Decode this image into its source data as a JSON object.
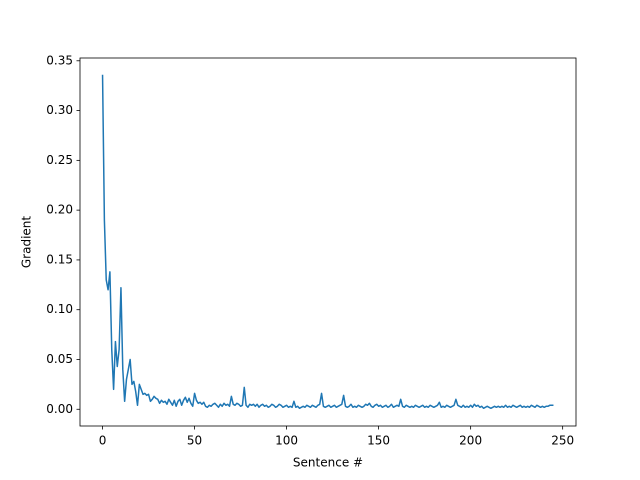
{
  "chart_data": {
    "type": "line",
    "xlabel": "Sentence #",
    "ylabel": "Gradient",
    "x": [
      0,
      1,
      2,
      3,
      4,
      5,
      6,
      7,
      8,
      9,
      10,
      11,
      12,
      13,
      14,
      15,
      16,
      17,
      18,
      19,
      20,
      21,
      22,
      23,
      24,
      25,
      26,
      27,
      28,
      29,
      30,
      31,
      32,
      33,
      34,
      35,
      36,
      37,
      38,
      39,
      40,
      41,
      42,
      43,
      44,
      45,
      46,
      47,
      48,
      49,
      50,
      51,
      52,
      53,
      54,
      55,
      56,
      57,
      58,
      59,
      60,
      61,
      62,
      63,
      64,
      65,
      66,
      67,
      68,
      69,
      70,
      71,
      72,
      73,
      74,
      75,
      76,
      77,
      78,
      79,
      80,
      81,
      82,
      83,
      84,
      85,
      86,
      87,
      88,
      89,
      90,
      91,
      92,
      93,
      94,
      95,
      96,
      97,
      98,
      99,
      100,
      101,
      102,
      103,
      104,
      105,
      106,
      107,
      108,
      109,
      110,
      111,
      112,
      113,
      114,
      115,
      116,
      117,
      118,
      119,
      120,
      121,
      122,
      123,
      124,
      125,
      126,
      127,
      128,
      129,
      130,
      131,
      132,
      133,
      134,
      135,
      136,
      137,
      138,
      139,
      140,
      141,
      142,
      143,
      144,
      145,
      146,
      147,
      148,
      149,
      150,
      151,
      152,
      153,
      154,
      155,
      156,
      157,
      158,
      159,
      160,
      161,
      162,
      163,
      164,
      165,
      166,
      167,
      168,
      169,
      170,
      171,
      172,
      173,
      174,
      175,
      176,
      177,
      178,
      179,
      180,
      181,
      182,
      183,
      184,
      185,
      186,
      187,
      188,
      189,
      190,
      191,
      192,
      193,
      194,
      195,
      196,
      197,
      198,
      199,
      200,
      201,
      202,
      203,
      204,
      205,
      206,
      207,
      208,
      209,
      210,
      211,
      212,
      213,
      214,
      215,
      216,
      217,
      218,
      219,
      220,
      221,
      222,
      223,
      224,
      225,
      226,
      227,
      228,
      229,
      230,
      231,
      232,
      233,
      234,
      235,
      236,
      237,
      238,
      239,
      240,
      241,
      242,
      243,
      244,
      245
    ],
    "series": [
      {
        "color": "#1f77b4",
        "values": [
          0.336,
          0.19,
          0.13,
          0.12,
          0.138,
          0.06,
          0.02,
          0.068,
          0.043,
          0.06,
          0.122,
          0.04,
          0.008,
          0.03,
          0.04,
          0.05,
          0.025,
          0.028,
          0.018,
          0.004,
          0.025,
          0.02,
          0.015,
          0.016,
          0.014,
          0.015,
          0.008,
          0.01,
          0.013,
          0.011,
          0.01,
          0.006,
          0.009,
          0.007,
          0.008,
          0.005,
          0.01,
          0.007,
          0.004,
          0.009,
          0.003,
          0.008,
          0.01,
          0.004,
          0.009,
          0.012,
          0.007,
          0.011,
          0.006,
          0.003,
          0.016,
          0.009,
          0.006,
          0.007,
          0.005,
          0.007,
          0.003,
          0.002,
          0.004,
          0.003,
          0.005,
          0.006,
          0.004,
          0.002,
          0.005,
          0.003,
          0.006,
          0.004,
          0.005,
          0.003,
          0.013,
          0.005,
          0.004,
          0.006,
          0.005,
          0.003,
          0.004,
          0.022,
          0.004,
          0.002,
          0.005,
          0.004,
          0.005,
          0.003,
          0.005,
          0.002,
          0.004,
          0.005,
          0.003,
          0.004,
          0.002,
          0.003,
          0.005,
          0.004,
          0.002,
          0.003,
          0.005,
          0.004,
          0.002,
          0.003,
          0.004,
          0.002,
          0.003,
          0.002,
          0.008,
          0.002,
          0.003,
          0.001,
          0.002,
          0.003,
          0.002,
          0.004,
          0.003,
          0.002,
          0.004,
          0.003,
          0.002,
          0.004,
          0.005,
          0.016,
          0.003,
          0.002,
          0.003,
          0.004,
          0.002,
          0.003,
          0.004,
          0.002,
          0.003,
          0.004,
          0.005,
          0.014,
          0.003,
          0.002,
          0.003,
          0.005,
          0.002,
          0.003,
          0.002,
          0.004,
          0.003,
          0.002,
          0.003,
          0.005,
          0.004,
          0.006,
          0.003,
          0.002,
          0.004,
          0.005,
          0.003,
          0.004,
          0.002,
          0.003,
          0.004,
          0.002,
          0.003,
          0.005,
          0.002,
          0.003,
          0.004,
          0.003,
          0.01,
          0.003,
          0.002,
          0.004,
          0.003,
          0.002,
          0.003,
          0.002,
          0.004,
          0.003,
          0.002,
          0.003,
          0.004,
          0.002,
          0.003,
          0.002,
          0.004,
          0.003,
          0.002,
          0.003,
          0.004,
          0.007,
          0.002,
          0.003,
          0.002,
          0.004,
          0.003,
          0.002,
          0.003,
          0.004,
          0.01,
          0.004,
          0.003,
          0.002,
          0.004,
          0.002,
          0.003,
          0.002,
          0.004,
          0.002,
          0.005,
          0.003,
          0.004,
          0.002,
          0.003,
          0.001,
          0.002,
          0.003,
          0.002,
          0.001,
          0.002,
          0.003,
          0.002,
          0.003,
          0.002,
          0.003,
          0.002,
          0.004,
          0.002,
          0.003,
          0.002,
          0.004,
          0.003,
          0.002,
          0.003,
          0.004,
          0.002,
          0.003,
          0.002,
          0.003,
          0.002,
          0.004,
          0.003,
          0.002,
          0.004,
          0.003,
          0.002,
          0.003,
          0.002,
          0.003,
          0.003,
          0.004,
          0.004,
          0.004
        ]
      }
    ],
    "xlim": [
      -12.25,
      257.25
    ],
    "xticks": [
      0,
      50,
      100,
      150,
      200,
      250
    ],
    "ylim": [
      -0.0168,
      0.3528
    ],
    "yticks": [
      {
        "value": 0,
        "label": "0.00"
      },
      {
        "value": 0.05,
        "label": "0.05"
      },
      {
        "value": 0.1,
        "label": "0.10"
      },
      {
        "value": 0.15,
        "label": "0.15"
      },
      {
        "value": 0.2,
        "label": "0.20"
      },
      {
        "value": 0.25,
        "label": "0.25"
      },
      {
        "value": 0.3,
        "label": "0.30"
      },
      {
        "value": 0.35,
        "label": "0.35"
      }
    ],
    "grid": false
  }
}
